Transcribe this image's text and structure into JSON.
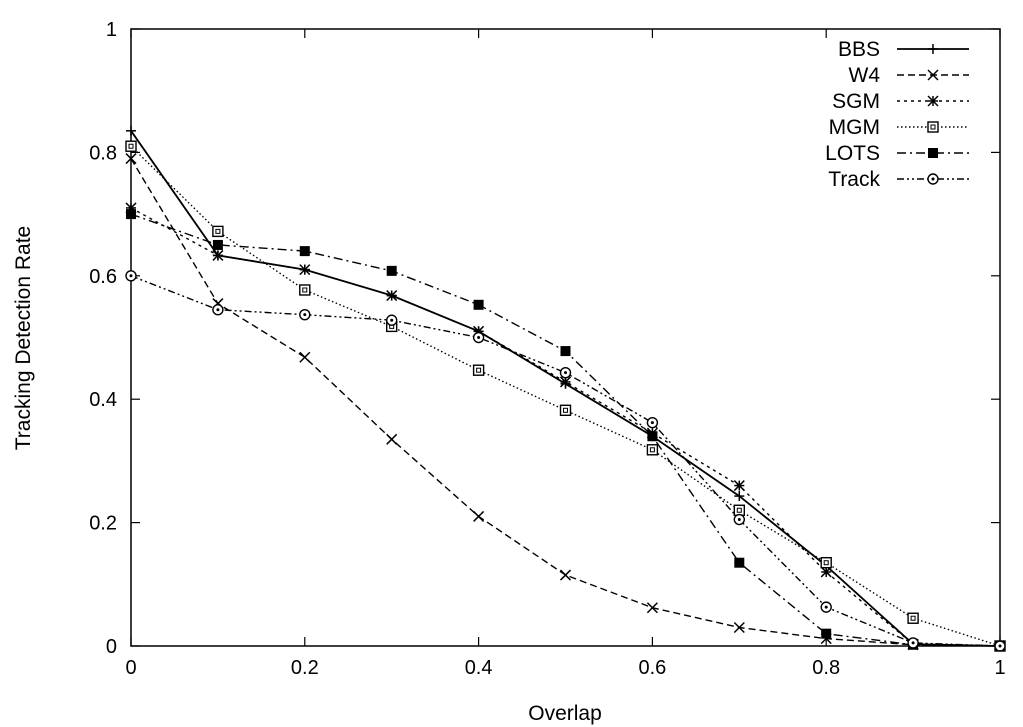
{
  "chart_data": {
    "type": "line",
    "xlabel": "Overlap",
    "ylabel": "Tracking Detection Rate",
    "xlim": [
      0,
      1
    ],
    "ylim": [
      0,
      1
    ],
    "xticks": [
      "0",
      "0.2",
      "0.4",
      "0.6",
      "0.8",
      "1"
    ],
    "yticks": [
      "0",
      "0.2",
      "0.4",
      "0.6",
      "0.8",
      "1"
    ],
    "grid": false,
    "legend_position": "top-right",
    "x": [
      0,
      0.1,
      0.2,
      0.3,
      0.4,
      0.5,
      0.6,
      0.7,
      0.8,
      0.9,
      1.0
    ],
    "series": [
      {
        "name": "BBS",
        "marker": "plus",
        "dash": "solid",
        "values": [
          0.835,
          0.633,
          0.61,
          0.568,
          0.51,
          0.425,
          0.34,
          0.243,
          0.13,
          0.003,
          0
        ]
      },
      {
        "name": "W4",
        "marker": "x",
        "dash": "dashed",
        "values": [
          0.79,
          0.555,
          0.468,
          0.335,
          0.21,
          0.115,
          0.062,
          0.03,
          0.012,
          0.002,
          0
        ]
      },
      {
        "name": "SGM",
        "marker": "asterisk",
        "dash": "dotted",
        "values": [
          0.71,
          0.633,
          0.61,
          0.568,
          0.51,
          0.428,
          0.345,
          0.26,
          0.12,
          0.003,
          0
        ]
      },
      {
        "name": "MGM",
        "marker": "open-square",
        "dash": "fine-dotted",
        "values": [
          0.81,
          0.672,
          0.577,
          0.518,
          0.447,
          0.382,
          0.318,
          0.22,
          0.135,
          0.045,
          0
        ]
      },
      {
        "name": "LOTS",
        "marker": "filled-square",
        "dash": "dash-dot",
        "values": [
          0.7,
          0.65,
          0.64,
          0.608,
          0.553,
          0.478,
          0.34,
          0.135,
          0.02,
          0.002,
          0
        ]
      },
      {
        "name": "Track",
        "marker": "circle",
        "dash": "dash-dot-dot",
        "values": [
          0.6,
          0.545,
          0.537,
          0.528,
          0.5,
          0.443,
          0.362,
          0.205,
          0.063,
          0.005,
          0
        ]
      }
    ]
  }
}
